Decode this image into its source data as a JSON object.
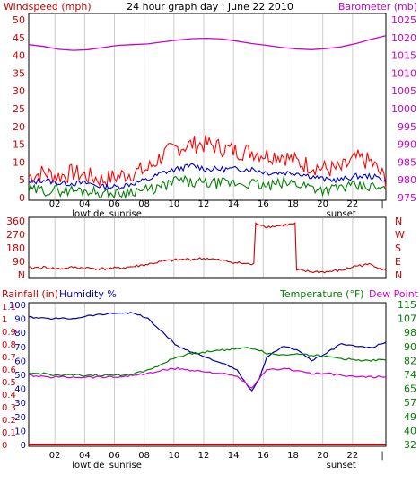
{
  "header": {
    "windspeed_label": "Windspeed (mph)",
    "title": "24 hour graph day : June 22 2010",
    "barometer_label": "Barometer (mb)"
  },
  "panel3_header": {
    "rainfall_label": "Rainfall (in)",
    "humidity_label": "Humidity %",
    "temperature_label": "Temperature (°F)",
    "dewpoint_label": "Dew Point"
  },
  "colors": {
    "windspeed": "#ff0000",
    "gust": "#ff0000",
    "avg_wind": "#0000cc",
    "wind_low": "#008000",
    "barometer": "#cc00cc",
    "direction": "#cc0000",
    "humidity": "#0000aa",
    "temperature": "#008000",
    "dewpoint": "#cc00cc",
    "rainfall": "#cc0000",
    "frame": "#000000",
    "grid": "#cccccc"
  },
  "chart_data": [
    {
      "type": "line",
      "name": "wind-barometer",
      "x_ticks": [
        "02",
        "04",
        "06",
        "08",
        "10",
        "12",
        "14",
        "16",
        "18",
        "20",
        "22",
        "|"
      ],
      "x_annotations": [
        {
          "text": "lowtide",
          "at_hour": 4
        },
        {
          "text": "sunrise",
          "at_hour": 6.5
        },
        {
          "text": "sunset",
          "at_hour": 21
        }
      ],
      "left_axis": {
        "ticks": [
          "0",
          "5",
          "10",
          "15",
          "20",
          "25",
          "30",
          "35",
          "40",
          "45",
          "50"
        ],
        "ylim": [
          0,
          50
        ]
      },
      "right_axis": {
        "ticks": [
          "975",
          "980",
          "985",
          "990",
          "995",
          "1000",
          "1005",
          "1010",
          "1015",
          "1020",
          "1025"
        ],
        "ylim": [
          975,
          1025
        ]
      },
      "x_hours": [
        0,
        1,
        2,
        3,
        4,
        5,
        6,
        7,
        8,
        9,
        10,
        11,
        12,
        13,
        14,
        15,
        16,
        17,
        18,
        19,
        20,
        21,
        22,
        23,
        24
      ],
      "series": [
        {
          "key": "gust",
          "axis": "left",
          "values": [
            6,
            7,
            6,
            7,
            6,
            5,
            6,
            7,
            8,
            12,
            14,
            15,
            15,
            14,
            13,
            13,
            12,
            12,
            10,
            9,
            8,
            8,
            11,
            10,
            5
          ]
        },
        {
          "key": "avg",
          "axis": "left",
          "values": [
            4,
            5,
            4,
            4,
            4,
            3,
            3,
            4,
            5,
            7,
            8,
            9,
            8,
            8,
            8,
            8,
            7,
            7,
            7,
            6,
            5,
            5,
            6,
            6,
            5
          ]
        },
        {
          "key": "low",
          "axis": "left",
          "values": [
            2,
            2,
            2,
            2,
            2,
            1,
            1,
            2,
            2,
            3,
            5,
            4,
            4,
            4,
            4,
            4,
            3,
            4,
            4,
            3,
            2,
            3,
            3,
            3,
            2
          ]
        },
        {
          "key": "barometer",
          "axis": "right",
          "values": [
            1018,
            1017.5,
            1016.7,
            1016.4,
            1016.6,
            1017.2,
            1017.8,
            1018.0,
            1018.2,
            1018.8,
            1019.3,
            1019.7,
            1019.8,
            1019.6,
            1019.0,
            1018.3,
            1017.8,
            1017.2,
            1016.8,
            1016.6,
            1016.9,
            1017.4,
            1018.3,
            1019.5,
            1020.5
          ]
        }
      ]
    },
    {
      "type": "line",
      "name": "wind-direction",
      "x_ticks": [
        "02",
        "04",
        "06",
        "08",
        "10",
        "12",
        "14",
        "16",
        "18",
        "20",
        "22",
        "|"
      ],
      "left_axis": {
        "ticks": [
          "N",
          "90",
          "180",
          "270",
          "360"
        ],
        "ylim": [
          0,
          360
        ]
      },
      "right_axis": {
        "ticks": [
          "N",
          "W",
          "S",
          "E",
          "N"
        ]
      },
      "x_hours": [
        0,
        1,
        2,
        3,
        4,
        5,
        6,
        7,
        8,
        9,
        10,
        11,
        12,
        13,
        14,
        15,
        15.5,
        16,
        17,
        17.9,
        18.1,
        19,
        20,
        21,
        22,
        23,
        24
      ],
      "series": [
        {
          "key": "direction",
          "values": [
            45,
            50,
            40,
            50,
            45,
            40,
            45,
            55,
            70,
            90,
            100,
            105,
            110,
            95,
            80,
            70,
            340,
            320,
            330,
            340,
            30,
            20,
            20,
            30,
            60,
            70,
            30
          ]
        }
      ]
    },
    {
      "type": "line",
      "name": "humidity-temperature",
      "x_ticks": [
        "02",
        "04",
        "06",
        "08",
        "10",
        "12",
        "14",
        "16",
        "18",
        "20",
        "22",
        "|"
      ],
      "x_annotations": [
        {
          "text": "lowtide",
          "at_hour": 4
        },
        {
          "text": "sunrise",
          "at_hour": 6.5
        },
        {
          "text": "sunset",
          "at_hour": 21
        }
      ],
      "left_rain_axis": {
        "ticks": [
          "0",
          "0.1",
          "0.2",
          "0.3",
          "0.4",
          "0.5",
          "0.6",
          "0.7",
          "0.8",
          "0.9",
          "1",
          "1.1"
        ],
        "ylim": [
          0,
          1.1
        ]
      },
      "left_humidity_axis": {
        "ticks": [
          "0",
          "10",
          "20",
          "30",
          "40",
          "50",
          "60",
          "70",
          "80",
          "90",
          "100"
        ],
        "ylim": [
          0,
          100
        ]
      },
      "right_axis": {
        "ticks": [
          "32",
          "40",
          "49",
          "57",
          "65",
          "74",
          "82",
          "90",
          "98",
          "107",
          "115"
        ],
        "ylim": [
          32,
          115
        ]
      },
      "x_hours": [
        0,
        1,
        2,
        3,
        4,
        5,
        6,
        7,
        8,
        9,
        10,
        11,
        12,
        13,
        14,
        14.5,
        15,
        15.5,
        16,
        17,
        18,
        19,
        20,
        21,
        22,
        23,
        24
      ],
      "series": [
        {
          "key": "humidity",
          "axis": "humidity",
          "values": [
            91,
            90,
            90,
            90,
            92,
            93,
            94,
            94,
            90,
            80,
            70,
            66,
            62,
            58,
            53,
            45,
            38,
            47,
            62,
            70,
            68,
            60,
            65,
            72,
            70,
            69,
            73
          ]
        },
        {
          "key": "temperature",
          "axis": "temp",
          "values": [
            74,
            74,
            73,
            73,
            73,
            73,
            73,
            74,
            76,
            80,
            84,
            86,
            87,
            88,
            89,
            89,
            89,
            88,
            86,
            85,
            86,
            85,
            84,
            83,
            82,
            82,
            82
          ]
        },
        {
          "key": "dewpoint",
          "axis": "temp",
          "values": [
            73,
            72,
            72,
            72,
            72,
            72,
            72,
            73,
            74,
            76,
            77,
            76,
            75,
            74,
            72,
            69,
            65,
            71,
            76,
            77,
            76,
            74,
            74,
            73,
            72,
            72,
            72
          ]
        },
        {
          "key": "rainfall",
          "axis": "rain",
          "values": [
            0,
            0,
            0,
            0,
            0,
            0,
            0,
            0,
            0,
            0,
            0,
            0,
            0,
            0,
            0,
            0,
            0,
            0,
            0,
            0,
            0,
            0,
            0,
            0,
            0,
            0,
            0
          ]
        }
      ]
    }
  ]
}
